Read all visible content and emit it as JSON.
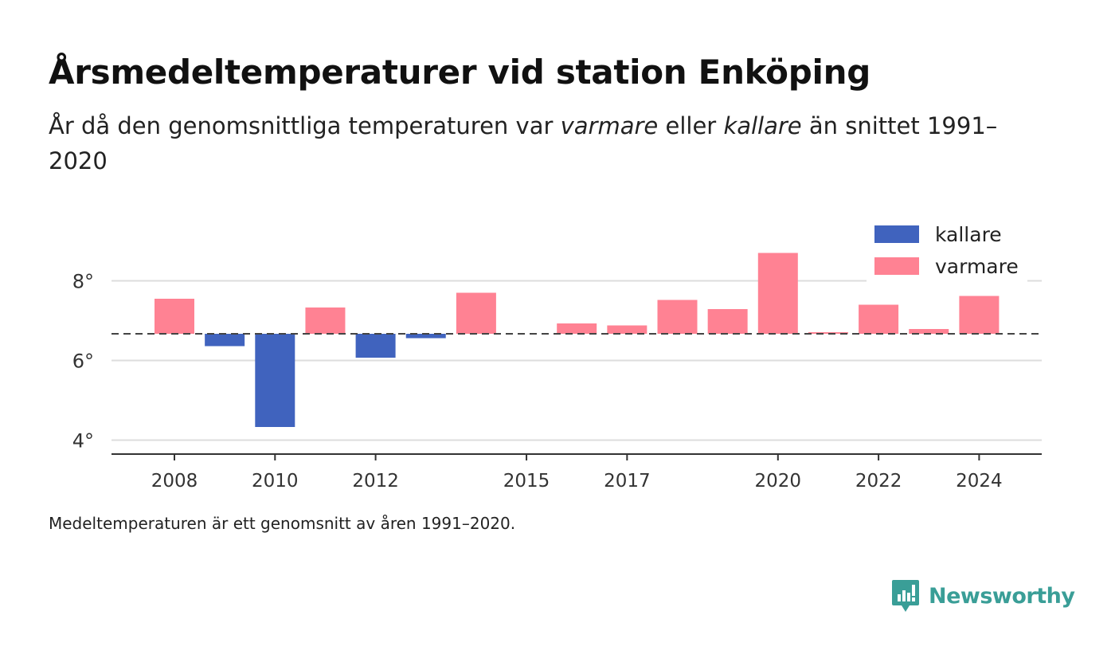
{
  "title": "Årsmedeltemperaturer vid station Enköping",
  "subtitle": {
    "part1": "År då den genomsnittliga temperaturen var ",
    "warm_word": "varmare",
    "part2": " eller ",
    "cold_word": "kallare",
    "part3": " än snittet 1991–2020"
  },
  "footnote": "Medeltemperaturen är ett genomsnitt av åren 1991–2020.",
  "brand": {
    "name": "Newsworthy",
    "icon": "newsworthy-logo-icon",
    "color": "#3a9e97"
  },
  "chart_data": {
    "type": "bar",
    "baseline": 6.67,
    "ylim": [
      3.8,
      9.3
    ],
    "xlim": [
      2007,
      2025.3
    ],
    "yticks": [
      4,
      6,
      8
    ],
    "ytick_labels": [
      "4°",
      "6°",
      "8°"
    ],
    "xticks": [
      2008,
      2010,
      2012,
      2015,
      2017,
      2020,
      2022,
      2024
    ],
    "xtick_labels": [
      "2008",
      "2010",
      "2012",
      "2015",
      "2017",
      "2020",
      "2022",
      "2024"
    ],
    "grid": true,
    "colors": {
      "kallare": "#4063be",
      "varmare": "#ff8293"
    },
    "legend": {
      "position": "top-right",
      "items": [
        {
          "label": "kallare",
          "color": "#4063be"
        },
        {
          "label": "varmare",
          "color": "#ff8293"
        }
      ]
    },
    "categories": [
      "2008",
      "2009",
      "2010",
      "2011",
      "2012",
      "2013",
      "2014",
      "2015",
      "2016",
      "2017",
      "2018",
      "2019",
      "2020",
      "2021",
      "2022",
      "2023",
      "2024"
    ],
    "values": [
      7.55,
      6.36,
      4.33,
      7.33,
      6.07,
      6.56,
      7.7,
      null,
      6.93,
      6.88,
      7.52,
      7.29,
      8.7,
      6.71,
      7.4,
      6.79,
      7.62
    ]
  }
}
